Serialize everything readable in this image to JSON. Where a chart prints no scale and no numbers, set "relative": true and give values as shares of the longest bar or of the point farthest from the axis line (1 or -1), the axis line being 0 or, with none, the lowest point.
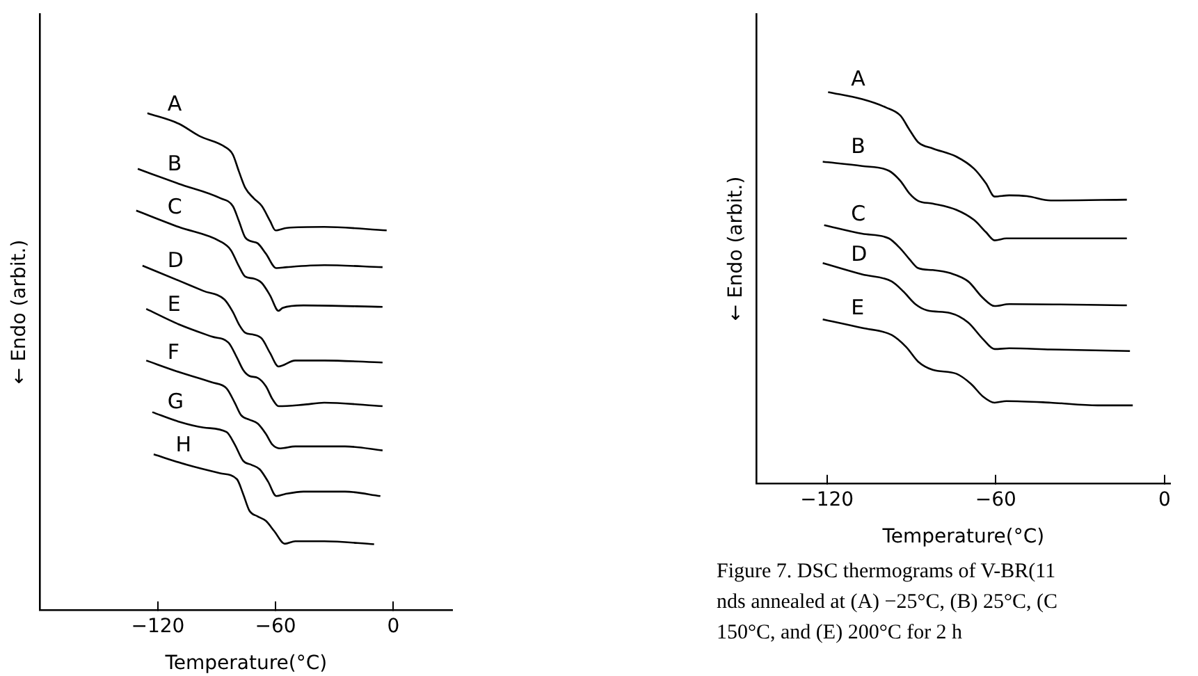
{
  "chart_data": [
    {
      "type": "line",
      "relative": true,
      "xlabel": "Temperature(°C)",
      "ylabel": "← Endo (arbit.)",
      "xlim": [
        -180,
        30
      ],
      "xticks": [
        -120,
        -60,
        0
      ],
      "grid": false,
      "legend": false,
      "marker": "none",
      "line_style": "solid",
      "series": [
        {
          "name": "A",
          "color": "#000000",
          "x": [
            -125.3,
            -109.4,
            -98.8,
            -86.1,
            -81.8,
            -78.7,
            -75.5,
            -71.2,
            -67.0,
            -62.8,
            -60.0,
            -54.3,
            -35.2,
            -3.4
          ],
          "values": [
            1.0,
            0.979,
            0.954,
            0.933,
            0.917,
            0.883,
            0.85,
            0.829,
            0.813,
            0.783,
            0.764,
            0.769,
            0.771,
            0.764
          ]
        },
        {
          "name": "B",
          "color": "#000000",
          "x": [
            -130.2,
            -109.4,
            -88.2,
            -81.8,
            -78.7,
            -75.5,
            -72.3,
            -69.1,
            -64.9,
            -59.6,
            -54.3,
            -35.2,
            -5.5
          ],
          "values": [
            0.888,
            0.858,
            0.829,
            0.813,
            0.783,
            0.75,
            0.742,
            0.738,
            0.717,
            0.688,
            0.69,
            0.694,
            0.69
          ]
        },
        {
          "name": "C",
          "color": "#000000",
          "x": [
            -131.0,
            -109.4,
            -88.2,
            -82.9,
            -78.7,
            -75.5,
            -71.2,
            -67.0,
            -62.8,
            -58.5,
            -56.4,
            -45.8,
            -5.5
          ],
          "values": [
            0.804,
            0.771,
            0.742,
            0.725,
            0.692,
            0.671,
            0.667,
            0.658,
            0.633,
            0.602,
            0.608,
            0.613,
            0.61
          ]
        },
        {
          "name": "D",
          "color": "#000000",
          "x": [
            -127.8,
            -109.4,
            -96.7,
            -86.1,
            -81.8,
            -78.7,
            -75.5,
            -71.2,
            -67.0,
            -62.8,
            -58.5,
            -50.0,
            -35.2,
            -5.5
          ],
          "values": [
            0.693,
            0.663,
            0.642,
            0.625,
            0.6,
            0.575,
            0.558,
            0.554,
            0.546,
            0.517,
            0.49,
            0.502,
            0.502,
            0.498
          ]
        },
        {
          "name": "E",
          "color": "#000000",
          "x": [
            -125.9,
            -109.4,
            -92.4,
            -84.0,
            -79.7,
            -76.5,
            -73.4,
            -69.1,
            -64.9,
            -61.7,
            -58.5,
            -45.8,
            -35.2,
            -5.5
          ],
          "values": [
            0.606,
            0.575,
            0.55,
            0.538,
            0.508,
            0.483,
            0.471,
            0.467,
            0.45,
            0.425,
            0.41,
            0.413,
            0.417,
            0.41
          ]
        },
        {
          "name": "F",
          "color": "#000000",
          "x": [
            -125.9,
            -109.4,
            -92.4,
            -85.0,
            -80.8,
            -77.6,
            -73.4,
            -69.1,
            -64.9,
            -61.7,
            -57.5,
            -50.0,
            -24.6,
            -5.5
          ],
          "values": [
            0.502,
            0.479,
            0.458,
            0.446,
            0.417,
            0.392,
            0.383,
            0.375,
            0.354,
            0.333,
            0.325,
            0.329,
            0.329,
            0.321
          ]
        },
        {
          "name": "G",
          "color": "#000000",
          "x": [
            -122.8,
            -109.4,
            -96.7,
            -85.0,
            -80.8,
            -76.5,
            -72.3,
            -68.1,
            -63.8,
            -59.6,
            -55.3,
            -45.8,
            -24.6,
            -6.6
          ],
          "values": [
            0.398,
            0.379,
            0.367,
            0.358,
            0.333,
            0.3,
            0.292,
            0.283,
            0.258,
            0.229,
            0.233,
            0.238,
            0.238,
            0.229
          ]
        },
        {
          "name": "H",
          "color": "#000000",
          "x": [
            -122.1,
            -105.2,
            -88.2,
            -79.7,
            -76.5,
            -73.4,
            -69.1,
            -64.9,
            -60.6,
            -55.3,
            -50.0,
            -35.2,
            -9.8
          ],
          "values": [
            0.313,
            0.292,
            0.275,
            0.263,
            0.233,
            0.2,
            0.188,
            0.179,
            0.158,
            0.133,
            0.138,
            0.138,
            0.132
          ]
        }
      ]
    },
    {
      "type": "line",
      "relative": true,
      "xlabel": "Temperature(°C)",
      "ylabel": "← Endo (arbit.)",
      "xlim": [
        -145,
        2
      ],
      "xticks": [
        -120,
        -60,
        0
      ],
      "grid": false,
      "legend": false,
      "marker": "none",
      "line_style": "solid",
      "annotations": [
        "Figure 7.  DSC thermograms of V-BR(11",
        "nds annealed at (A) −25°C, (B) 25°C, (C",
        "150°C, and (E) 200°C for 2 h"
      ],
      "series": [
        {
          "name": "A",
          "color": "#000000",
          "x": [
            -119.6,
            -107.5,
            -99.1,
            -93.9,
            -90.7,
            -87.6,
            -82.4,
            -74.0,
            -67.7,
            -63.5,
            -60.4,
            -55.2,
            -48.9,
            -40.5,
            -13.4
          ],
          "values": [
            1.0,
            0.982,
            0.961,
            0.94,
            0.904,
            0.872,
            0.856,
            0.835,
            0.804,
            0.767,
            0.733,
            0.736,
            0.734,
            0.723,
            0.725
          ]
        },
        {
          "name": "B",
          "color": "#000000",
          "x": [
            -121.5,
            -107.5,
            -98.0,
            -93.9,
            -90.7,
            -87.6,
            -82.4,
            -74.0,
            -67.7,
            -63.5,
            -60.4,
            -56.2,
            -48.9,
            -13.4
          ],
          "values": [
            0.822,
            0.811,
            0.799,
            0.773,
            0.741,
            0.722,
            0.715,
            0.699,
            0.673,
            0.642,
            0.621,
            0.626,
            0.626,
            0.626
          ]
        },
        {
          "name": "C",
          "color": "#000000",
          "x": [
            -121.0,
            -107.5,
            -98.0,
            -93.9,
            -90.7,
            -87.6,
            -82.4,
            -76.1,
            -69.8,
            -64.6,
            -60.4,
            -55.2,
            -13.4
          ],
          "values": [
            0.66,
            0.638,
            0.626,
            0.6,
            0.573,
            0.55,
            0.545,
            0.537,
            0.516,
            0.474,
            0.453,
            0.458,
            0.455
          ]
        },
        {
          "name": "D",
          "color": "#000000",
          "x": [
            -121.5,
            -107.5,
            -97.0,
            -92.8,
            -88.6,
            -84.4,
            -76.1,
            -69.8,
            -64.6,
            -60.4,
            -55.2,
            -40.5,
            -12.3
          ],
          "values": [
            0.563,
            0.534,
            0.516,
            0.49,
            0.458,
            0.442,
            0.435,
            0.411,
            0.369,
            0.343,
            0.345,
            0.342,
            0.338
          ]
        },
        {
          "name": "E",
          "color": "#000000",
          "x": [
            -121.5,
            -107.5,
            -97.0,
            -91.8,
            -87.6,
            -82.4,
            -74.0,
            -68.8,
            -64.6,
            -60.4,
            -56.2,
            -40.5,
            -23.8,
            -11.3
          ],
          "values": [
            0.419,
            0.397,
            0.379,
            0.348,
            0.311,
            0.29,
            0.28,
            0.254,
            0.222,
            0.206,
            0.21,
            0.206,
            0.199,
            0.199
          ]
        }
      ]
    }
  ]
}
